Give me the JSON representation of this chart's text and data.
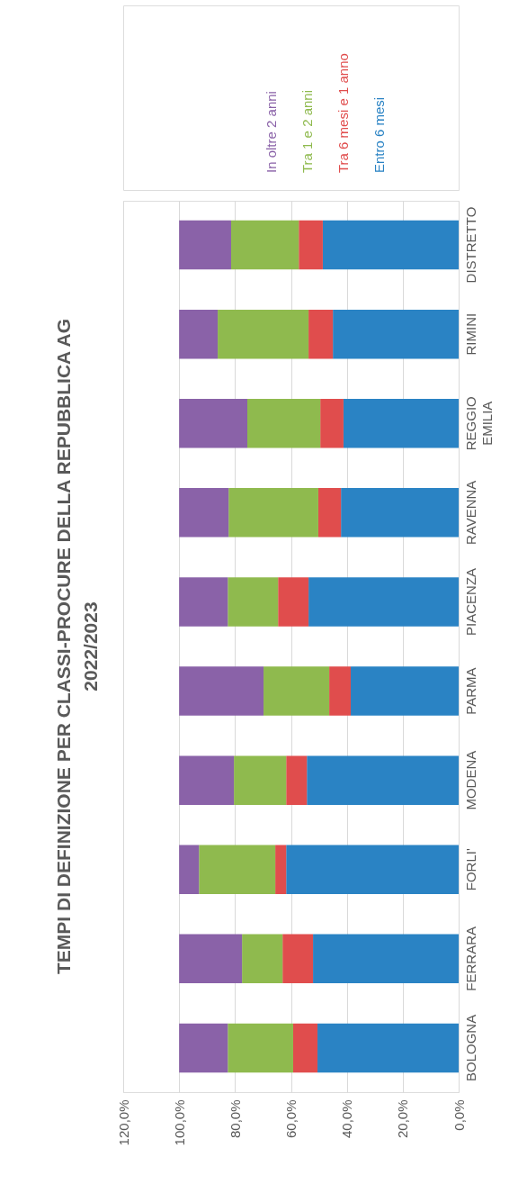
{
  "chart_data": {
    "type": "bar",
    "orientation": "horizontal",
    "stacked": true,
    "title": "TEMPI DI DEFINIZIONE PER CLASSI-PROCURE DELLA REPUBBLICA AG 2022/2023",
    "categories": [
      "DISTRETTO",
      "RIMINI",
      "REGGIO EMILIA",
      "RAVENNA",
      "PIACENZA",
      "PARMA",
      "MODENA",
      "FORLI'",
      "FERRARA",
      "BOLOGNA"
    ],
    "series": [
      {
        "name": "Entro 6 mesi",
        "color": "#2a83c4",
        "values": [
          48.6,
          45.0,
          41.2,
          42.1,
          53.7,
          38.6,
          54.3,
          61.7,
          52.1,
          50.5
        ]
      },
      {
        "name": "Tra 6 mesi e 1 anno",
        "color": "#e04d4d",
        "values": [
          8.6,
          8.7,
          8.3,
          8.1,
          10.9,
          7.7,
          7.4,
          3.9,
          10.9,
          8.7
        ]
      },
      {
        "name": "Tra 1 e 2 anni",
        "color": "#8fba4e",
        "values": [
          24.2,
          32.5,
          26.1,
          32.1,
          18.0,
          23.5,
          18.7,
          27.3,
          14.5,
          23.4
        ]
      },
      {
        "name": "In oltre 2 anni",
        "color": "#8a62a8",
        "values": [
          18.6,
          13.8,
          24.4,
          17.7,
          17.4,
          30.2,
          19.6,
          7.1,
          22.5,
          17.4
        ]
      }
    ],
    "xlim": [
      120,
      0
    ],
    "xticks": [
      {
        "value": 120,
        "label": "120,0%"
      },
      {
        "value": 100,
        "label": "100,0%"
      },
      {
        "value": 80,
        "label": "80,0%"
      },
      {
        "value": 60,
        "label": "60,0%"
      },
      {
        "value": 40,
        "label": "40,0%"
      },
      {
        "value": 20,
        "label": "20,0%"
      },
      {
        "value": 0,
        "label": "0,0%"
      }
    ],
    "grid": "x",
    "legend": "top"
  }
}
